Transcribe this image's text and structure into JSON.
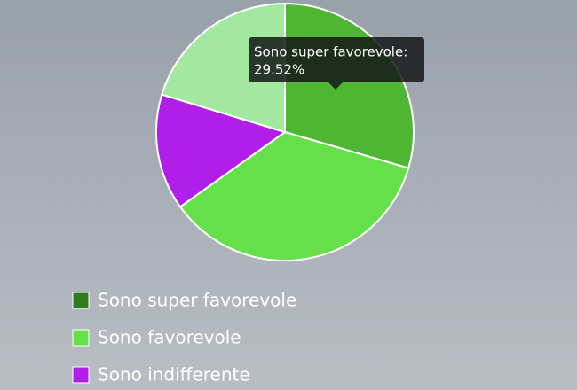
{
  "chart_data": {
    "type": "pie",
    "categories": [
      "Sono super favorevole",
      "Sono favorevole",
      "Sono indifferente",
      null
    ],
    "values": [
      29.52,
      35.6,
      14.6,
      20.28
    ],
    "colors": [
      "#4fb634",
      "#66e04a",
      "#b01ee8",
      "#a2e8a0"
    ],
    "legend_colors": [
      "#2e7d1a",
      "#66e04a",
      "#b01ee8",
      "#a2e8a0"
    ],
    "legend": "bottom-left",
    "tooltip": {
      "title": "Sono super favorevole:",
      "label": "29.52%"
    }
  }
}
